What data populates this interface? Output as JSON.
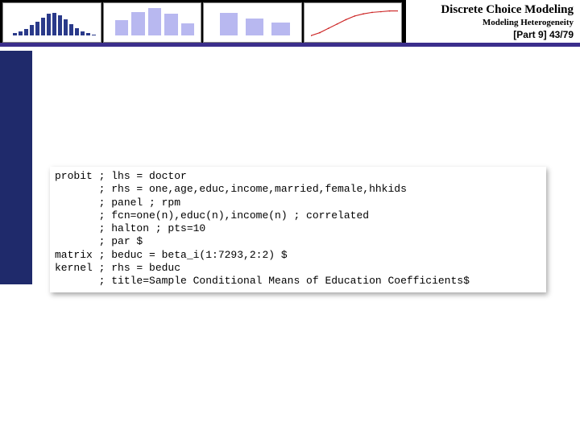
{
  "header": {
    "title_main": "Discrete Choice Modeling",
    "title_sub": "Modeling Heterogeneity",
    "part_label": "[Part 9]   43/79"
  },
  "thumbnails": {
    "thumb1": {
      "type": "bar",
      "bar_color": "#2a3a8a",
      "heights_pct": [
        10,
        18,
        30,
        45,
        62,
        80,
        95,
        100,
        88,
        70,
        50,
        32,
        18,
        10,
        5
      ]
    },
    "thumb2": {
      "type": "bar",
      "bar_color": "#b8b8f0",
      "heights_pct": [
        55,
        85,
        100,
        78,
        45
      ]
    },
    "thumb3": {
      "type": "bar",
      "bar_color": "#b8b8f0",
      "heights_pct": [
        95,
        70,
        55
      ]
    },
    "thumb4": {
      "type": "line",
      "line_color": "#cc2222",
      "points": [
        [
          0,
          38
        ],
        [
          10,
          34
        ],
        [
          20,
          28
        ],
        [
          30,
          22
        ],
        [
          40,
          16
        ],
        [
          50,
          11
        ],
        [
          60,
          8
        ],
        [
          70,
          6
        ],
        [
          80,
          5
        ],
        [
          90,
          4
        ],
        [
          100,
          4
        ]
      ]
    }
  },
  "colors": {
    "accent_purple": "#3b2e8c",
    "sidebar": "#1f2a6b",
    "code_bg": "#ffffff",
    "code_shadow": "rgba(0,0,0,0.35)"
  },
  "code": {
    "lines": [
      "probit ; lhs = doctor",
      "       ; rhs = one,age,educ,income,married,female,hhkids",
      "       ; panel ; rpm",
      "       ; fcn=one(n),educ(n),income(n) ; correlated",
      "       ; halton ; pts=10",
      "       ; par $",
      "matrix ; beduc = beta_i(1:7293,2:2) $",
      "kernel ; rhs = beduc",
      "       ; title=Sample Conditional Means of Education Coefficients$"
    ]
  }
}
